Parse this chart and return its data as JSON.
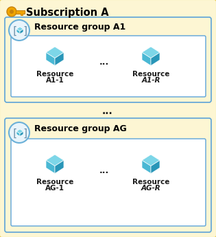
{
  "title": "Subscription A",
  "bg_outer_color": "#fdf6d3",
  "bg_outer_border": "#e8c840",
  "bg_inner_color": "#ffffff",
  "bg_inner_border": "#5ba3d9",
  "group_a1_label": "Resource group A1",
  "group_ag_label": "Resource group AG",
  "res1_label1": "Resource",
  "res1_label2": "A1-1",
  "res2_label1": "Resource",
  "res2_label2": "A1-R",
  "res3_label1": "Resource",
  "res3_label2": "AG-1",
  "res4_label1": "Resource",
  "res4_label2": "AG-R",
  "dots_mid": "...",
  "dots_between_groups": "...",
  "title_color": "#000000",
  "label_color": "#1a1a1a",
  "key_body_color": "#f0a500",
  "key_shadow_color": "#c8820a",
  "cube_top_color": "#7dd6e8",
  "cube_left_color": "#4ab8d4",
  "cube_right_color": "#2996b8",
  "circle_fill": "#e8f4fb",
  "circle_border": "#6ab0d8",
  "bracket_color": "#6a8fa8"
}
